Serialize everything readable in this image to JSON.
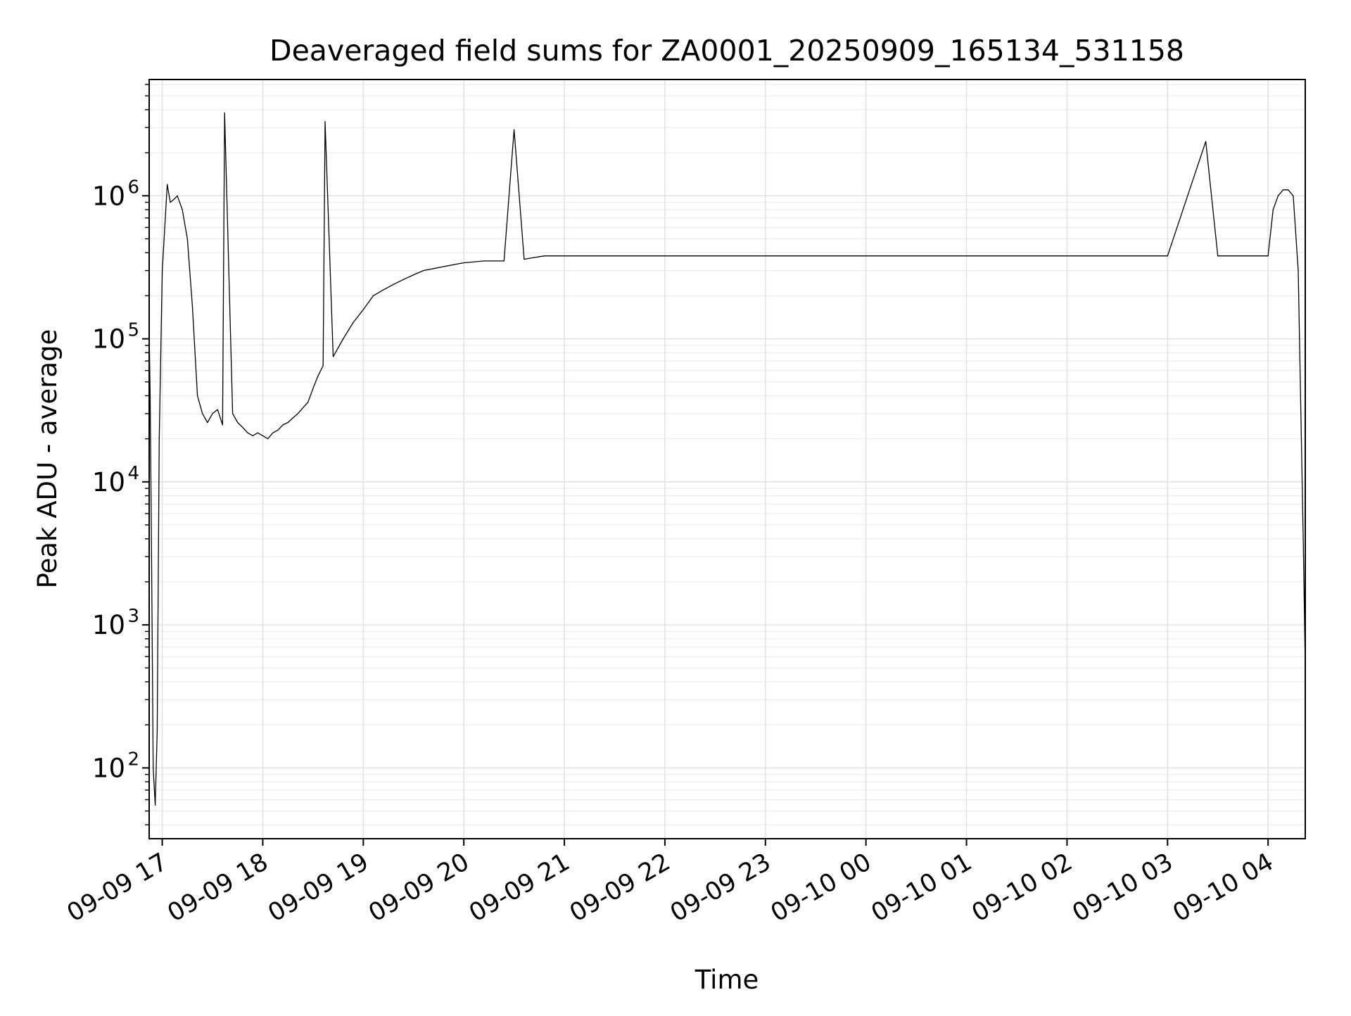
{
  "chart_data": {
    "type": "line",
    "title": "Deaveraged field sums for ZA0001_20250909_165134_531158",
    "xlabel": "Time",
    "ylabel": "Peak ADU - average",
    "yscale": "log",
    "grid": true,
    "legend": "none",
    "x_unit": "hours since 2025-09-09 16:00",
    "xlim": [
      0.87,
      12.37
    ],
    "ylim": [
      32,
      6500000
    ],
    "x_ticks": [
      {
        "value": 1,
        "label": "09-09 17"
      },
      {
        "value": 2,
        "label": "09-09 18"
      },
      {
        "value": 3,
        "label": "09-09 19"
      },
      {
        "value": 4,
        "label": "09-09 20"
      },
      {
        "value": 5,
        "label": "09-09 21"
      },
      {
        "value": 6,
        "label": "09-09 22"
      },
      {
        "value": 7,
        "label": "09-09 23"
      },
      {
        "value": 8,
        "label": "09-10 00"
      },
      {
        "value": 9,
        "label": "09-10 01"
      },
      {
        "value": 10,
        "label": "09-10 02"
      },
      {
        "value": 11,
        "label": "09-10 03"
      },
      {
        "value": 12,
        "label": "09-10 04"
      }
    ],
    "y_ticks": [
      {
        "value": 100,
        "base": "10",
        "exp": "2"
      },
      {
        "value": 1000,
        "base": "10",
        "exp": "3"
      },
      {
        "value": 10000,
        "base": "10",
        "exp": "4"
      },
      {
        "value": 100000,
        "base": "10",
        "exp": "5"
      },
      {
        "value": 1000000,
        "base": "10",
        "exp": "6"
      }
    ],
    "series": [
      {
        "name": "field sums",
        "color": "#000000",
        "x": [
          0.87,
          0.88,
          0.89,
          0.9,
          0.91,
          0.93,
          0.95,
          0.97,
          1.0,
          1.05,
          1.08,
          1.12,
          1.15,
          1.2,
          1.25,
          1.3,
          1.35,
          1.4,
          1.45,
          1.5,
          1.55,
          1.6,
          1.62,
          1.7,
          1.75,
          1.8,
          1.85,
          1.9,
          1.95,
          2.0,
          2.05,
          2.1,
          2.15,
          2.2,
          2.25,
          2.3,
          2.35,
          2.4,
          2.45,
          2.5,
          2.55,
          2.6,
          2.62,
          2.7,
          2.8,
          2.9,
          3.0,
          3.1,
          3.2,
          3.3,
          3.4,
          3.5,
          3.6,
          3.7,
          3.8,
          3.9,
          4.0,
          4.2,
          4.4,
          4.5,
          4.6,
          4.7,
          4.8,
          5.0,
          5.5,
          6.0,
          6.5,
          7.0,
          7.5,
          8.0,
          8.5,
          9.0,
          9.5,
          10.0,
          10.5,
          11.0,
          11.38,
          11.5,
          11.8,
          12.0,
          12.05,
          12.1,
          12.15,
          12.2,
          12.25,
          12.3,
          12.35,
          12.37
        ],
        "y": [
          110000,
          40000,
          6000,
          800,
          100,
          55,
          180,
          20000,
          300000,
          1200000,
          900000,
          950000,
          1000000,
          800000,
          500000,
          170000,
          40000,
          30000,
          26000,
          30000,
          32000,
          25000,
          3800000,
          30000,
          26000,
          24000,
          22000,
          21000,
          22000,
          21000,
          20000,
          22000,
          23000,
          25000,
          26000,
          28000,
          30000,
          33000,
          36000,
          45000,
          55000,
          65000,
          3300000,
          75000,
          100000,
          130000,
          160000,
          200000,
          220000,
          240000,
          260000,
          280000,
          300000,
          310000,
          320000,
          330000,
          340000,
          350000,
          350000,
          2900000,
          360000,
          370000,
          380000,
          380000,
          380000,
          380000,
          380000,
          380000,
          380000,
          380000,
          380000,
          380000,
          380000,
          380000,
          380000,
          380000,
          2400000,
          380000,
          380000,
          380000,
          800000,
          1000000,
          1100000,
          1100000,
          1000000,
          300000,
          4000,
          500
        ]
      }
    ]
  }
}
